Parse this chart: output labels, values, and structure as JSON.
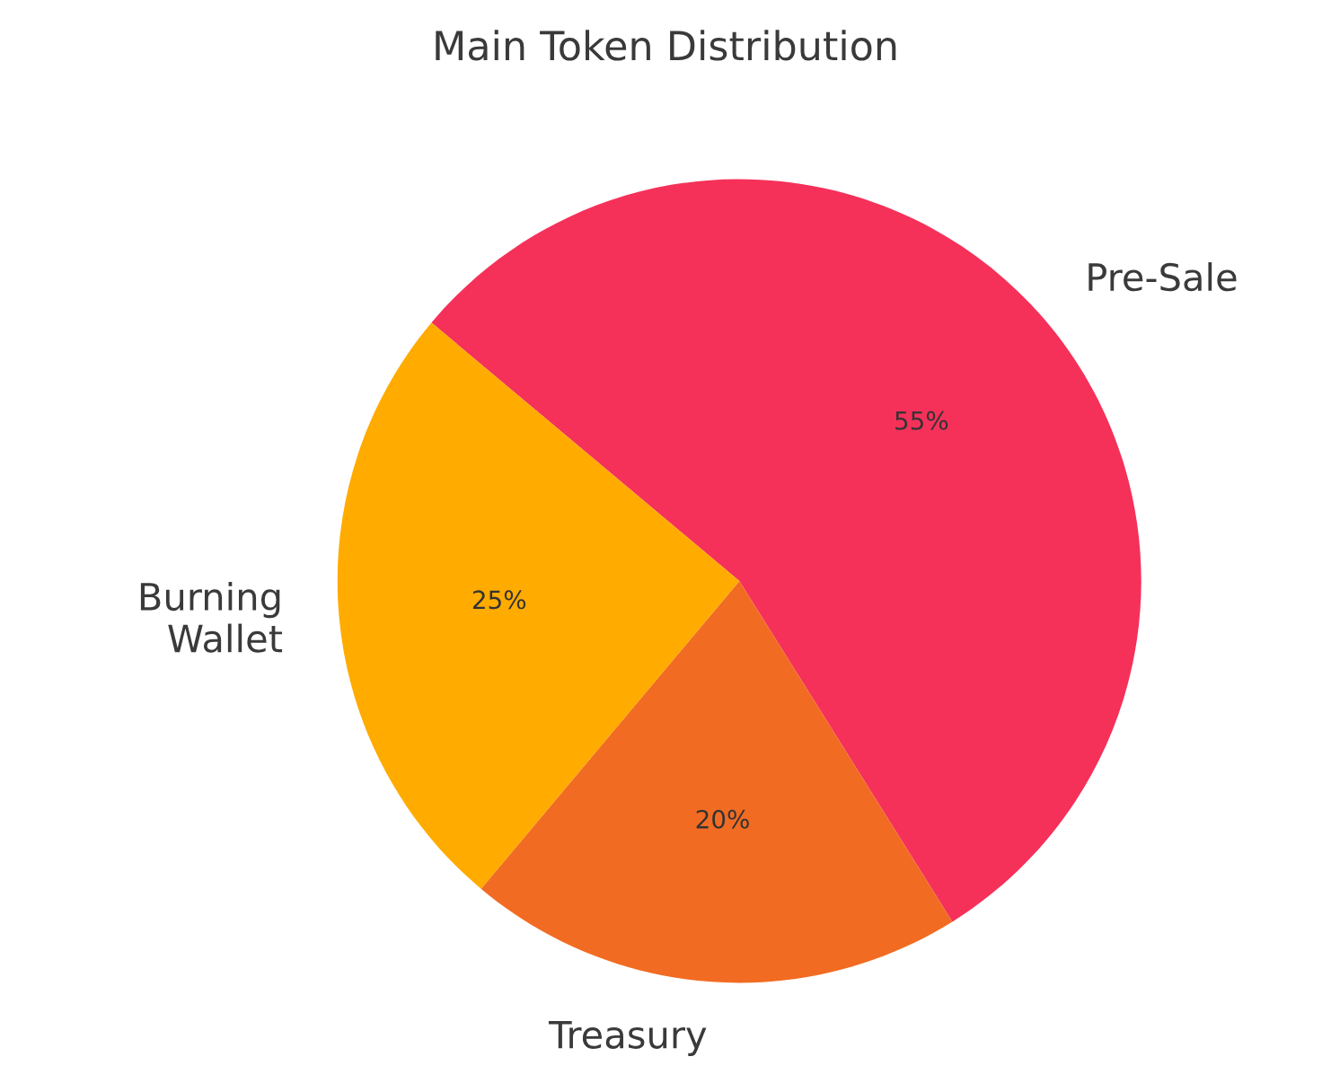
{
  "chart_data": {
    "type": "pie",
    "title": "Main Token Distribution",
    "categories": [
      "Pre-Sale",
      "Treasury",
      "Burning\nWallet"
    ],
    "values": [
      55,
      20,
      25
    ],
    "colors": [
      "#f5315a",
      "#f26b22",
      "#ffab00"
    ],
    "value_labels": [
      "55%",
      "20%",
      "25%"
    ],
    "legend": false
  }
}
